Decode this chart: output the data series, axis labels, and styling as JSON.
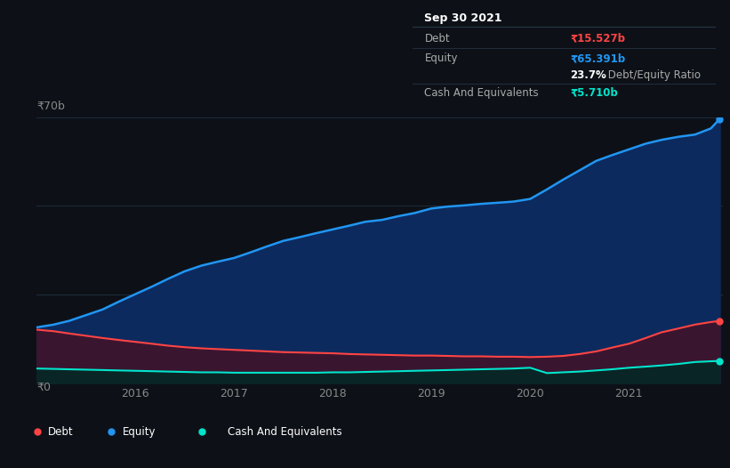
{
  "background_color": "#0d1117",
  "chart_bg": "#0d1117",
  "grid_color": "#1c2a3a",
  "y_label_top": "₹70b",
  "y_label_bottom": "₹0",
  "x_ticks": [
    "2016",
    "2017",
    "2018",
    "2019",
    "2020",
    "2021"
  ],
  "legend": [
    {
      "label": "Debt",
      "color": "#ff4444"
    },
    {
      "label": "Equity",
      "color": "#2196f3"
    },
    {
      "label": "Cash And Equivalents",
      "color": "#00e5cc"
    }
  ],
  "years": [
    2015.0,
    2015.17,
    2015.33,
    2015.5,
    2015.67,
    2015.83,
    2016.0,
    2016.17,
    2016.33,
    2016.5,
    2016.67,
    2016.83,
    2017.0,
    2017.17,
    2017.33,
    2017.5,
    2017.67,
    2017.83,
    2018.0,
    2018.17,
    2018.33,
    2018.5,
    2018.67,
    2018.83,
    2019.0,
    2019.17,
    2019.33,
    2019.5,
    2019.67,
    2019.83,
    2020.0,
    2020.17,
    2020.33,
    2020.5,
    2020.67,
    2020.83,
    2021.0,
    2021.17,
    2021.33,
    2021.5,
    2021.67,
    2021.83,
    2021.92
  ],
  "equity": [
    14.8,
    15.5,
    16.5,
    18.0,
    19.5,
    21.5,
    23.5,
    25.5,
    27.5,
    29.5,
    31.0,
    32.0,
    33.0,
    34.5,
    36.0,
    37.5,
    38.5,
    39.5,
    40.5,
    41.5,
    42.5,
    43.0,
    44.0,
    44.8,
    46.0,
    46.5,
    46.8,
    47.2,
    47.5,
    47.8,
    48.5,
    51.0,
    53.5,
    56.0,
    58.5,
    60.0,
    61.5,
    63.0,
    64.0,
    64.8,
    65.39,
    67.0,
    69.5
  ],
  "debt": [
    14.2,
    13.8,
    13.2,
    12.6,
    12.0,
    11.5,
    11.0,
    10.5,
    10.0,
    9.6,
    9.3,
    9.1,
    8.9,
    8.7,
    8.5,
    8.3,
    8.2,
    8.1,
    8.0,
    7.8,
    7.7,
    7.6,
    7.5,
    7.4,
    7.4,
    7.3,
    7.2,
    7.2,
    7.1,
    7.1,
    7.0,
    7.1,
    7.3,
    7.8,
    8.5,
    9.5,
    10.5,
    12.0,
    13.5,
    14.5,
    15.527,
    16.2,
    16.5
  ],
  "cash": [
    4.0,
    3.9,
    3.8,
    3.7,
    3.6,
    3.5,
    3.4,
    3.3,
    3.2,
    3.1,
    3.0,
    3.0,
    2.9,
    2.9,
    2.9,
    2.9,
    2.9,
    2.9,
    3.0,
    3.0,
    3.1,
    3.2,
    3.3,
    3.4,
    3.5,
    3.6,
    3.7,
    3.8,
    3.9,
    4.0,
    4.2,
    2.8,
    3.0,
    3.2,
    3.5,
    3.8,
    4.2,
    4.5,
    4.8,
    5.2,
    5.71,
    5.9,
    6.0
  ],
  "ylim": [
    0,
    70
  ],
  "xlim": [
    2015.0,
    2021.95
  ],
  "debt_color": "#ff4444",
  "equity_color": "#2196f3",
  "cash_color": "#00e5cc",
  "equity_fill": "#0d2a5e",
  "debt_fill": "#3a1530",
  "cash_fill": "#0a2525",
  "tooltip": {
    "date": "Sep 30 2021",
    "debt_label": "Debt",
    "debt_value": "₹15.527b",
    "equity_label": "Equity",
    "equity_value": "₹65.391b",
    "ratio_pct": "23.7%",
    "ratio_label": " Debt/Equity Ratio",
    "cash_label": "Cash And Equivalents",
    "cash_value": "₹5.710b"
  },
  "tooltip_bg": "#080e14",
  "tooltip_border": "#2a3a4a"
}
